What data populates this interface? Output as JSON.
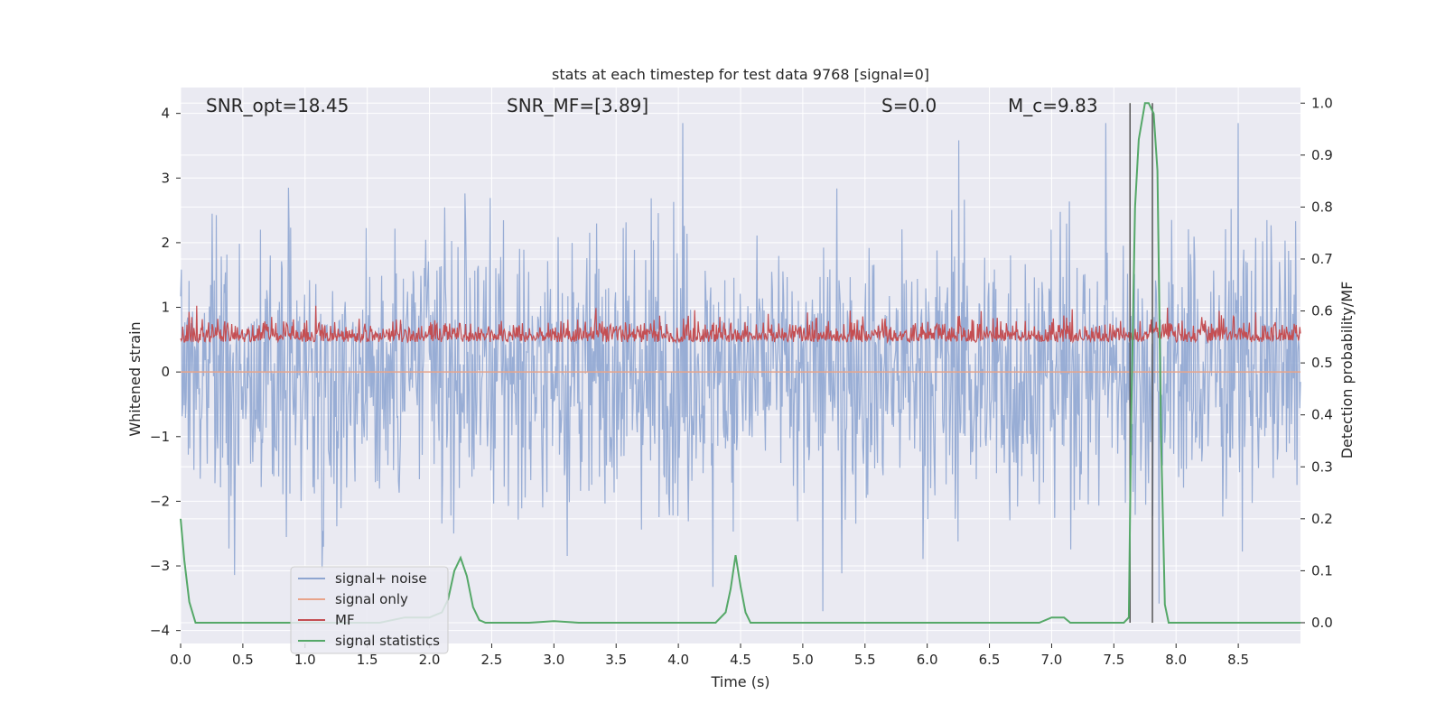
{
  "chart_data": {
    "type": "line",
    "title": "stats at each timestep for test data 9768 [signal=0]",
    "xlabel": "Time (s)",
    "ylabel": "Whitened strain",
    "ylabel_right": "Detection probability/MF",
    "xlim": [
      0,
      9.0
    ],
    "ylim": [
      -4.2,
      4.4
    ],
    "ylim_right": [
      -0.04,
      1.03
    ],
    "x_ticks": [
      "0.0",
      "0.5",
      "1.0",
      "1.5",
      "2.0",
      "2.5",
      "3.0",
      "3.5",
      "4.0",
      "4.5",
      "5.0",
      "5.5",
      "6.0",
      "6.5",
      "7.0",
      "7.5",
      "8.0",
      "8.5"
    ],
    "y_ticks": [
      "4",
      "3",
      "2",
      "1",
      "0",
      "−1",
      "−2",
      "−3",
      "−4"
    ],
    "y_ticks_right": [
      "1.0",
      "0.9",
      "0.8",
      "0.7",
      "0.6",
      "0.5",
      "0.4",
      "0.3",
      "0.2",
      "0.1",
      "0.0"
    ],
    "grid": true,
    "legend_position": "lower-left",
    "annotations": [
      {
        "id": "snr_opt",
        "text": "SNR_opt=18.45"
      },
      {
        "id": "snr_mf",
        "text": "SNR_MF=[3.89]"
      },
      {
        "id": "s",
        "text": "S=0.0"
      },
      {
        "id": "mc",
        "text": "M_c=9.83"
      }
    ],
    "vertical_lines_x": [
      7.63,
      7.81
    ],
    "series": [
      {
        "name": "signal+ noise",
        "color": "#8fa6d1",
        "axis": "left",
        "note": "dense noise trace spanning roughly ±1.5 with spikes up to ~3.8 and down to ~-3.7"
      },
      {
        "name": "signal only",
        "color": "#e8a48a",
        "axis": "left",
        "values_constant": 0.0
      },
      {
        "name": "MF",
        "color": "#c44e52",
        "axis": "right",
        "note": "dense trace between ~0.50 and ~0.61"
      },
      {
        "name": "signal statistics",
        "color": "#55a868",
        "axis": "right",
        "x": [
          0.0,
          0.03,
          0.07,
          0.12,
          0.2,
          0.4,
          0.8,
          1.2,
          1.6,
          1.8,
          2.0,
          2.05,
          2.1,
          2.15,
          2.2,
          2.25,
          2.3,
          2.35,
          2.4,
          2.45,
          2.5,
          2.55,
          2.6,
          2.8,
          3.0,
          3.2,
          3.5,
          4.0,
          4.3,
          4.38,
          4.42,
          4.46,
          4.5,
          4.54,
          4.58,
          4.62,
          4.7,
          5.0,
          5.5,
          6.0,
          6.5,
          6.9,
          7.0,
          7.05,
          7.1,
          7.15,
          7.2,
          7.4,
          7.58,
          7.62,
          7.64,
          7.67,
          7.7,
          7.75,
          7.78,
          7.82,
          7.85,
          7.88,
          7.91,
          7.94,
          7.96,
          8.0,
          8.1,
          8.5,
          9.0
        ],
        "y": [
          0.2,
          0.12,
          0.04,
          0.0,
          0.0,
          0.0,
          0.0,
          0.0,
          0.0,
          0.01,
          0.01,
          0.015,
          0.02,
          0.045,
          0.1,
          0.125,
          0.09,
          0.03,
          0.005,
          0.0,
          0.0,
          0.0,
          0.0,
          0.0,
          0.003,
          0.0,
          0.0,
          0.0,
          0.0,
          0.02,
          0.065,
          0.13,
          0.07,
          0.02,
          0.0,
          0.0,
          0.0,
          0.0,
          0.0,
          0.0,
          0.0,
          0.0,
          0.01,
          0.01,
          0.01,
          0.0,
          0.0,
          0.0,
          0.0,
          0.01,
          0.4,
          0.8,
          0.93,
          1.0,
          1.0,
          0.98,
          0.87,
          0.35,
          0.035,
          0.0,
          0.0,
          0.0,
          0.0,
          0.0,
          0.0
        ]
      }
    ]
  }
}
